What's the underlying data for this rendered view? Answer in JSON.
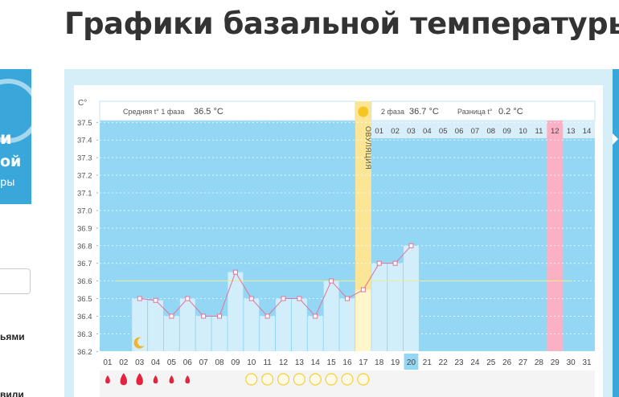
{
  "page": {
    "title": "Графики базальной температуры"
  },
  "sidebar": {
    "banner_lines": [
      "и",
      "ой",
      "ры"
    ],
    "text_1": "ьями",
    "text_2": "вили"
  },
  "header": {
    "phase1_label": "Средняя t° 1 фаза",
    "phase1_value": "36.5 °C",
    "phase2_label": "2 фаза",
    "phase2_value": "36.7 °C",
    "diff_label": "Разница t°",
    "diff_value": "0.2 °C"
  },
  "colors": {
    "area": "#94d7f5",
    "phase2_header": "#d8eff9",
    "ovulation": "#fbe596",
    "highlight": "#fbb0c3",
    "bar": "#d2eefb",
    "line": "#e27398",
    "coverline": "#eded8e",
    "drop": "#e3233f"
  },
  "chart_data": {
    "type": "line",
    "ylabel": "C°",
    "ylim": [
      36.2,
      37.5
    ],
    "yticks": [
      "36.2",
      "36.3",
      "36.4",
      "36.5",
      "36.6",
      "36.7",
      "36.8",
      "36.9",
      "37.0",
      "37.1",
      "37.2",
      "37.3",
      "37.4",
      "37.5"
    ],
    "x_labels": [
      "01",
      "02",
      "03",
      "04",
      "05",
      "06",
      "07",
      "08",
      "09",
      "10",
      "11",
      "12",
      "13",
      "14",
      "15",
      "16",
      "17",
      "18",
      "19",
      "20",
      "21",
      "22",
      "23",
      "24",
      "25",
      "26",
      "27",
      "28",
      "29",
      "30",
      "31"
    ],
    "cycle_days_after_ovulation": [
      "01",
      "02",
      "03",
      "04",
      "05",
      "06",
      "07",
      "08",
      "09",
      "10",
      "11",
      "12",
      "13",
      "14"
    ],
    "series": [
      {
        "values": [
          null,
          null,
          36.5,
          36.49,
          36.4,
          36.5,
          36.4,
          36.4,
          36.65,
          36.5,
          36.4,
          36.5,
          36.5,
          36.4,
          36.6,
          36.5,
          36.55,
          36.7,
          36.7,
          36.8
        ]
      }
    ],
    "coverline": 36.6,
    "ovulation_day": 17,
    "ovulation_label": "ОВУЛЯЦИЯ",
    "highlight_day": 29,
    "current_day": 20,
    "menstruation_days": [
      1,
      2,
      3,
      4,
      5,
      6
    ],
    "menstruation_big": [
      2,
      3
    ],
    "marked_days": [
      10,
      11,
      12,
      13,
      14,
      15,
      16,
      17
    ],
    "moon_day": 3,
    "grid": "dashed horizontal"
  }
}
